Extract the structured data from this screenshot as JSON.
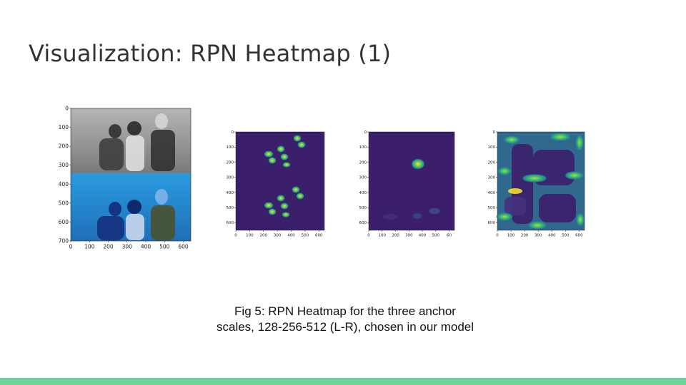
{
  "slide": {
    "title": "Visualization: RPN Heatmap (1)",
    "caption": "Fig 5: RPN Heatmap for the three anchor scales, 128-256-512 (L-R), chosen in our model"
  },
  "colors": {
    "footer": "#6fd29a",
    "viridis_bg": "#3b1f6b",
    "viridis_mid": "#2a788e",
    "viridis_hi": "#fde725",
    "photo_gray": "#8e8e8e",
    "photo_blue": "#2a90d8"
  },
  "figures": [
    {
      "name": "input-image-plot",
      "y_ticks": [
        "0",
        "100",
        "200",
        "300",
        "400",
        "500",
        "600",
        "700"
      ],
      "x_ticks": [
        "0",
        "100",
        "200",
        "300",
        "400",
        "500",
        "600"
      ]
    },
    {
      "name": "heatmap-128",
      "y_ticks": [
        "0",
        "100",
        "200",
        "300",
        "400",
        "500",
        "600"
      ],
      "x_ticks": [
        "0",
        "100",
        "200",
        "300",
        "400",
        "500",
        "600"
      ]
    },
    {
      "name": "heatmap-256",
      "y_ticks": [
        "0",
        "100",
        "200",
        "300",
        "400",
        "500",
        "600"
      ],
      "x_ticks": [
        "0",
        "100",
        "200",
        "300",
        "400",
        "500",
        "60"
      ]
    },
    {
      "name": "heatmap-512",
      "y_ticks": [
        "0",
        "100",
        "200",
        "300",
        "400",
        "500",
        "600"
      ],
      "x_ticks": [
        "0",
        "100",
        "200",
        "300",
        "400",
        "500",
        "600"
      ]
    }
  ]
}
